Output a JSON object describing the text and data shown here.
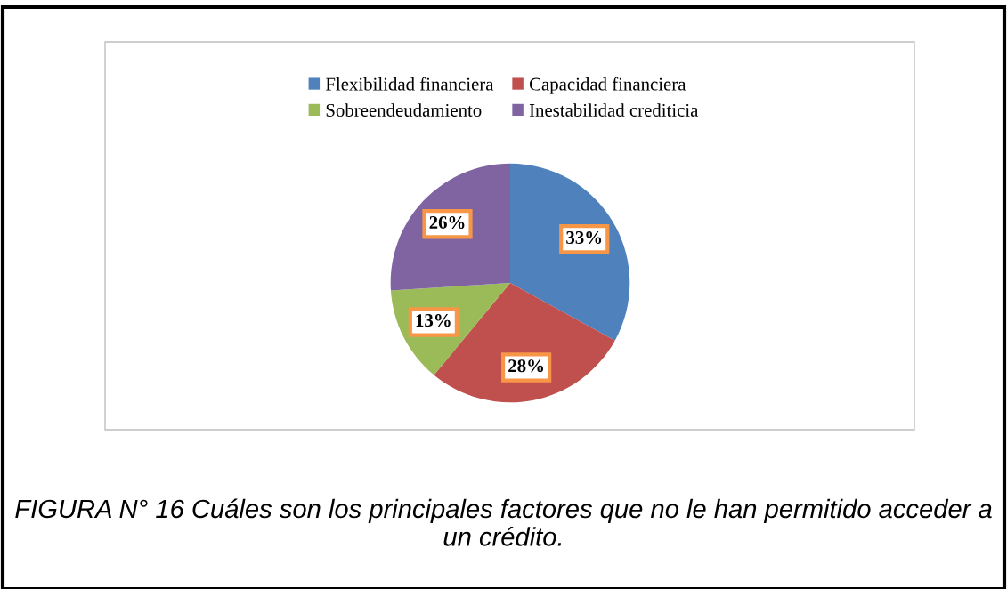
{
  "chart_data": {
    "type": "pie",
    "title": "FIGURA N° 16",
    "annotations": [
      "Cuáles son los principales factores que no le han permitido acceder a un crédito."
    ],
    "categories": [
      "Flexibilidad financiera",
      "Capacidad financiera",
      "Sobreendeudamiento",
      "Inestabilidad crediticia"
    ],
    "values": [
      33,
      28,
      13,
      26
    ],
    "colors": [
      "#4f81bd",
      "#c0504d",
      "#9bbb59",
      "#8064a2"
    ],
    "value_labels": [
      "33%",
      "28%",
      "13%",
      "26%"
    ],
    "legend": "top"
  }
}
